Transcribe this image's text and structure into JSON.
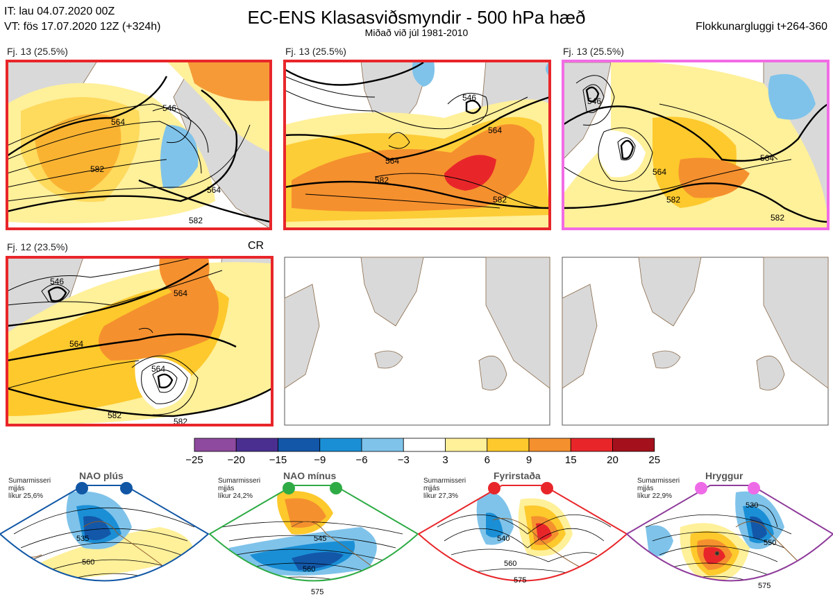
{
  "header": {
    "it": "IT: lau 04.07.2020 00Z",
    "vt": "VT: fös 17.07.2020 12Z  (+324h)",
    "title": "EC-ENS Klasasviðsmyndir - 500 hPa hæð",
    "subtitle": "Miðað við júl 1981-2010",
    "window": "Flokkunargluggi t+264-360"
  },
  "panels": [
    {
      "label": "Fj. 13 (25.5%)",
      "border": "#e8262a",
      "contours": [
        "546",
        "564",
        "582",
        "564",
        "582"
      ]
    },
    {
      "label": "Fj. 13 (25.5%)",
      "border": "#e8262a",
      "contours": [
        "546",
        "564",
        "564",
        "582",
        "582"
      ]
    },
    {
      "label": "Fj. 13 (25.5%)",
      "border": "#f26be5",
      "contours": [
        "546",
        "564",
        "564",
        "582",
        "582"
      ]
    },
    {
      "label": "Fj. 12 (23.5%)",
      "border": "#e8262a",
      "contours": [
        "546",
        "564",
        "564",
        "564",
        "582",
        "582"
      ],
      "tag": "CR"
    }
  ],
  "colorbar": {
    "ticks": [
      "−25",
      "−20",
      "−15",
      "−9",
      "−6",
      "−3",
      "3",
      "6",
      "9",
      "15",
      "20",
      "25"
    ],
    "colors": [
      "#8e4a9e",
      "#4a2f91",
      "#1357a8",
      "#1b8fd6",
      "#7fc3ea",
      "#ffffff",
      "#fff09a",
      "#fdc92c",
      "#f5902e",
      "#e8262a",
      "#a4111c"
    ]
  },
  "regimes": [
    {
      "title": "NAO plús",
      "line1": "Sumarmisseri",
      "line2": "mjjás",
      "line3": "líkur 25,6%",
      "dot": "#1157a5",
      "edge": "#1157a5",
      "contours": [
        "535",
        "560"
      ]
    },
    {
      "title": "NAO mínus",
      "line1": "Sumarmisseri",
      "line2": "mjjás",
      "line3": "líkur 24,2%",
      "dot": "#2eab45",
      "edge": "#2eab45",
      "contours": [
        "545",
        "560",
        "575"
      ]
    },
    {
      "title": "Fyrirstaða",
      "line1": "Sumarmisseri",
      "line2": "mjjás",
      "line3": "líkur 27,3%",
      "dot": "#e8262a",
      "edge": "#e8262a",
      "contours": [
        "540",
        "560",
        "575"
      ]
    },
    {
      "title": "Hryggur",
      "line1": "Sumarmisseri",
      "line2": "mjjás",
      "line3": "líkur 22,9%",
      "dot": "#ee6be8",
      "edge": "#8e3b9a",
      "contours": [
        "530",
        "550",
        "575"
      ]
    }
  ],
  "chart_data": {
    "type": "heatmap",
    "colorbar_bounds": [
      -25,
      -20,
      -15,
      -9,
      -6,
      -3,
      3,
      6,
      9,
      15,
      20,
      25
    ],
    "scenario_frequencies_percent": [
      25.5,
      25.5,
      25.5,
      23.5
    ],
    "regime_probabilities_percent": {
      "NAO plús": 25.6,
      "NAO mínus": 24.2,
      "Fyrirstaða": 27.3,
      "Hryggur": 22.9
    }
  }
}
